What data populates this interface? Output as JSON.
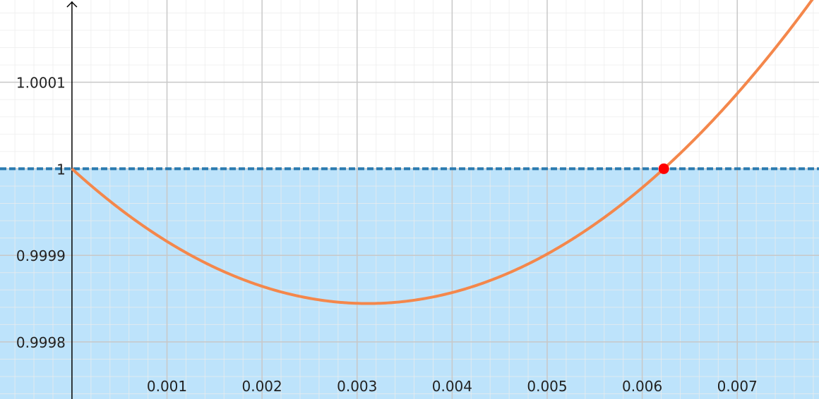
{
  "chart_data": {
    "type": "line",
    "title": "",
    "xlabel": "",
    "ylabel": "",
    "xlim": [
      -0.000757,
      0.00786
    ],
    "ylim": [
      0.999734,
      1.000195
    ],
    "x_ticks": [
      {
        "value": 0.001,
        "label": "0.001"
      },
      {
        "value": 0.002,
        "label": "0.002"
      },
      {
        "value": 0.003,
        "label": "0.003"
      },
      {
        "value": 0.004,
        "label": "0.004"
      },
      {
        "value": 0.005,
        "label": "0.005"
      },
      {
        "value": 0.006,
        "label": "0.006"
      },
      {
        "value": 0.007,
        "label": "0.007"
      }
    ],
    "y_ticks": [
      {
        "value": 0.9998,
        "label": "0.9998"
      },
      {
        "value": 0.9999,
        "label": "0.9999"
      },
      {
        "value": 1.0,
        "label": "1"
      },
      {
        "value": 1.0001,
        "label": "1.0001"
      }
    ],
    "grid": true,
    "minor_grid_step": {
      "x": 0.0002,
      "y": 2e-05
    },
    "curve": {
      "form": "y = 1 - a*x + b*x^2",
      "a": 0.1,
      "b": 16.06,
      "color": "#f4874b"
    },
    "threshold": {
      "y": 1,
      "style": "dashed",
      "color": "#2a7ab0",
      "shade_below": true,
      "fill_color": "#bde3fb"
    },
    "marked_point": {
      "x": 0.006227,
      "y": 1,
      "color": "#ff0000"
    },
    "colors": {
      "major_grid": "#c8c8c8",
      "minor_grid": "#ececec",
      "axis": "#000000"
    }
  }
}
